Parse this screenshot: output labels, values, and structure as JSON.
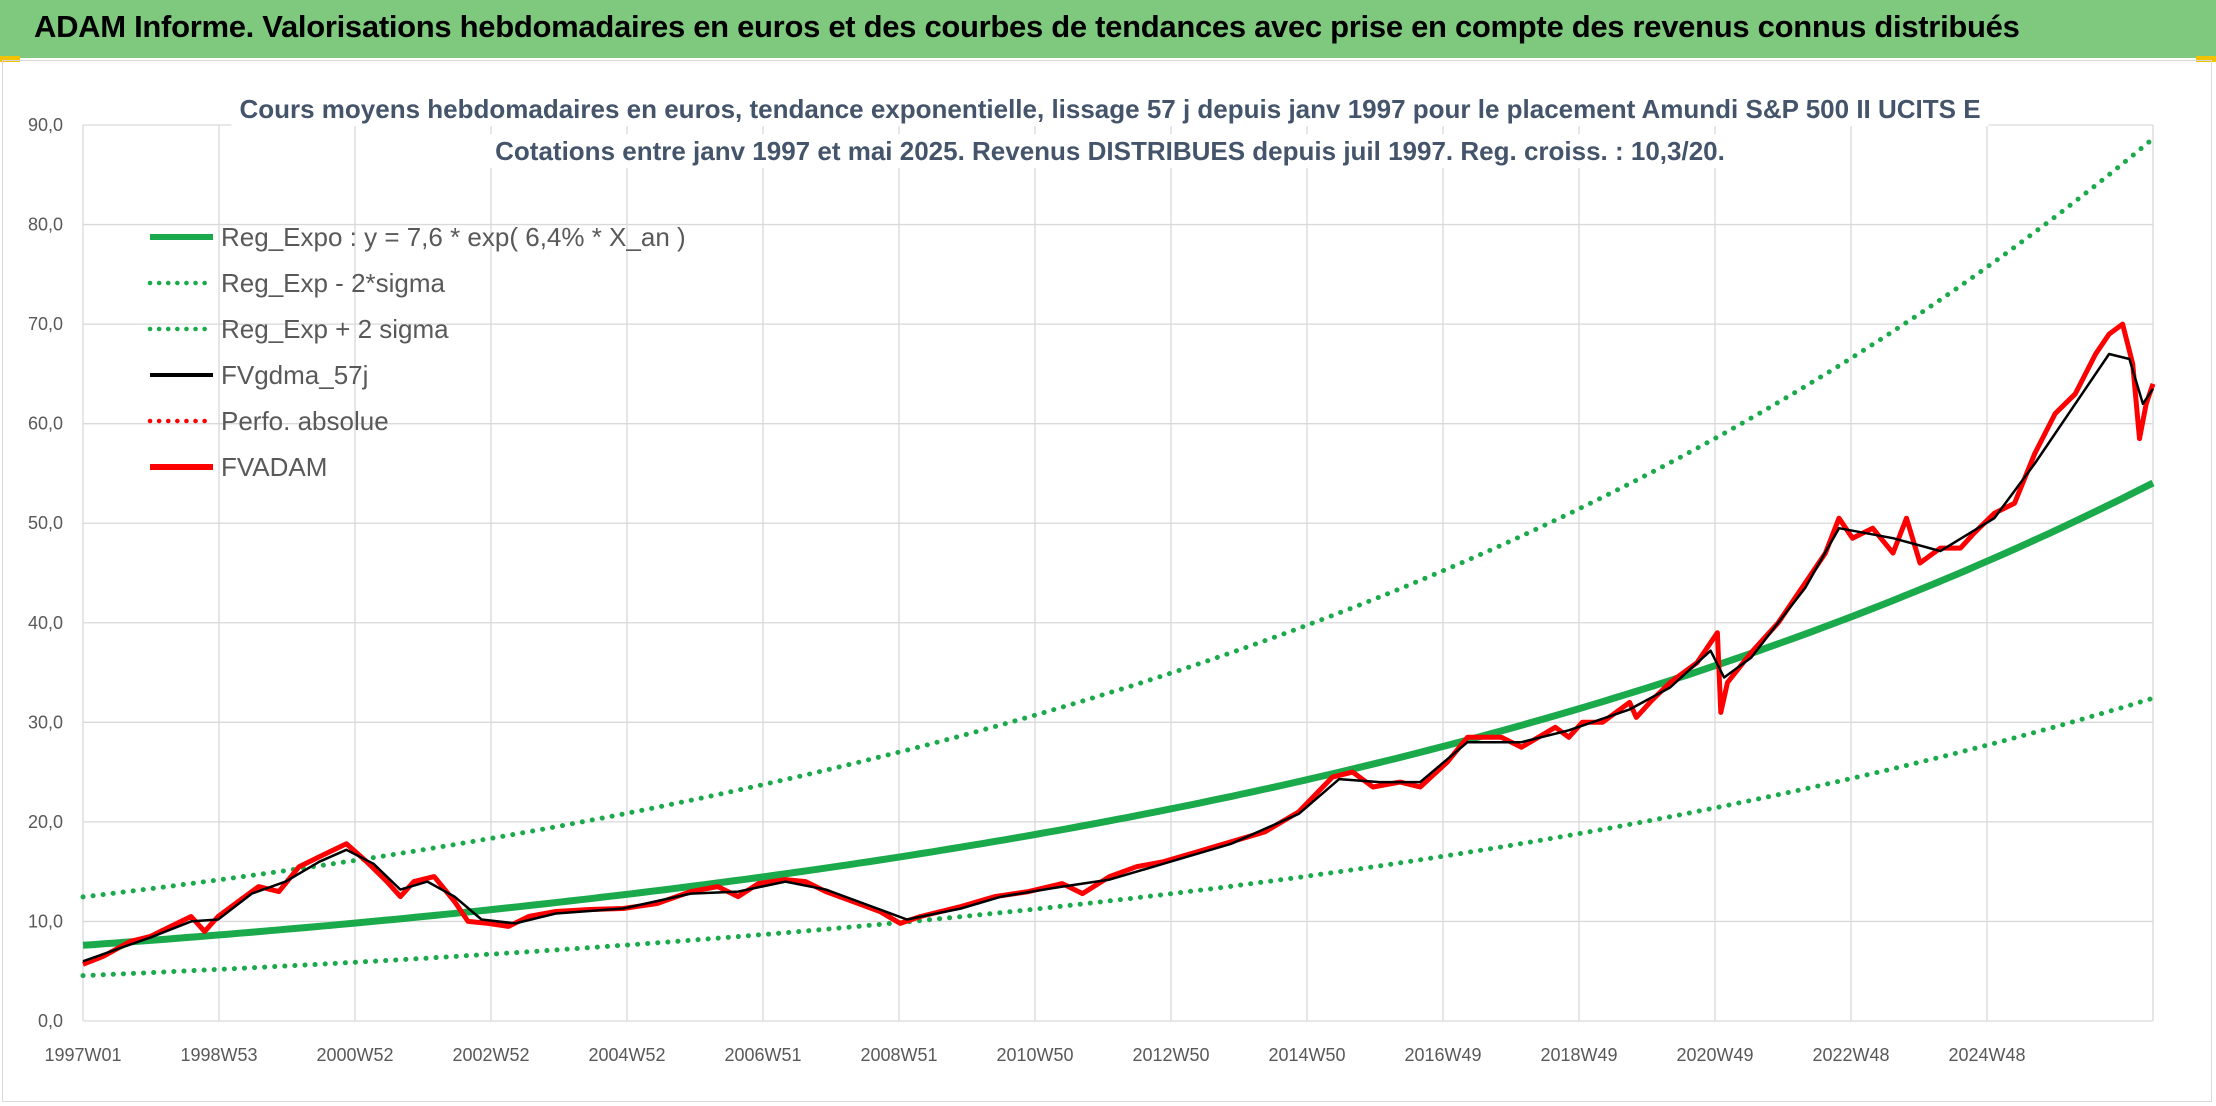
{
  "header": {
    "banner": "ADAM Informe. Valorisations hebdomadaires en euros et des courbes de tendances avec prise en compte des revenus connus distribués"
  },
  "colors": {
    "banner_bg": "#7fc97f",
    "regression": "#1aaa4b",
    "smoothed": "#000000",
    "price": "#ff0000",
    "grid": "#d9d9d9",
    "title": "#44546a"
  },
  "chart_data": {
    "type": "line",
    "title_lines": [
      "Cours moyens hebdomadaires en euros, tendance exponentielle, lissage 57 j depuis janv 1997 pour le placement Amundi S&P 500 II UCITS E",
      "Cotations entre janv 1997 et mai 2025. Revenus DISTRIBUES depuis juil 1997. Reg. croiss. : 10,3/20."
    ],
    "x_range": [
      "1997W01",
      "2025W21"
    ],
    "x_ticks": [
      "1997W01",
      "1998W53",
      "2000W52",
      "2002W52",
      "2004W52",
      "2006W51",
      "2008W51",
      "2010W50",
      "2012W50",
      "2014W50",
      "2016W49",
      "2018W49",
      "2020W49",
      "2022W48",
      "2024W48"
    ],
    "y_ticks": [
      "0,0",
      "10,0",
      "20,0",
      "30,0",
      "40,0",
      "50,0",
      "60,0",
      "70,0",
      "80,0",
      "90,0"
    ],
    "ylim": [
      0,
      90
    ],
    "grid": true,
    "legend_position": "top-left",
    "legend": [
      {
        "label": "Reg_Expo : y = 7,6 * exp( 6,4% *  X_an )",
        "style": "solid-thick",
        "color": "#1aaa4b"
      },
      {
        "label": "Reg_Exp - 2*sigma",
        "style": "dotted",
        "color": "#1aaa4b"
      },
      {
        "label": "Reg_Exp + 2 sigma",
        "style": "dotted",
        "color": "#1aaa4b"
      },
      {
        "label": "FVgdma_57j",
        "style": "solid",
        "color": "#000000"
      },
      {
        "label": "Perfo. absolue",
        "style": "dotted",
        "color": "#ff0000"
      },
      {
        "label": "FVADAM",
        "style": "solid-thick",
        "color": "#ff0000"
      }
    ],
    "regression": {
      "a": 7.6,
      "rate": 0.064,
      "lower_factor": 0.6,
      "upper_factor": 1.64
    },
    "series": [
      {
        "name": "FVADAM",
        "points": [
          [
            1997.0,
            5.7
          ],
          [
            1997.3,
            6.5
          ],
          [
            1997.7,
            8.0
          ],
          [
            1998.0,
            8.5
          ],
          [
            1998.3,
            9.5
          ],
          [
            1998.6,
            10.5
          ],
          [
            1998.8,
            9.0
          ],
          [
            1999.0,
            10.5
          ],
          [
            1999.3,
            12.0
          ],
          [
            1999.6,
            13.5
          ],
          [
            1999.9,
            13.0
          ],
          [
            2000.2,
            15.5
          ],
          [
            2000.5,
            16.5
          ],
          [
            2000.9,
            17.8
          ],
          [
            2001.2,
            16.0
          ],
          [
            2001.5,
            14.0
          ],
          [
            2001.7,
            12.5
          ],
          [
            2001.9,
            14.0
          ],
          [
            2002.2,
            14.5
          ],
          [
            2002.5,
            12.0
          ],
          [
            2002.7,
            10.0
          ],
          [
            2003.0,
            9.8
          ],
          [
            2003.3,
            9.5
          ],
          [
            2003.6,
            10.5
          ],
          [
            2004.0,
            11.0
          ],
          [
            2004.5,
            11.2
          ],
          [
            2005.0,
            11.3
          ],
          [
            2005.5,
            11.8
          ],
          [
            2006.0,
            13.0
          ],
          [
            2006.4,
            13.5
          ],
          [
            2006.7,
            12.5
          ],
          [
            2007.0,
            13.8
          ],
          [
            2007.4,
            14.2
          ],
          [
            2007.7,
            14.0
          ],
          [
            2008.0,
            13.0
          ],
          [
            2008.4,
            12.0
          ],
          [
            2008.8,
            11.0
          ],
          [
            2009.1,
            9.8
          ],
          [
            2009.4,
            10.5
          ],
          [
            2010.0,
            11.5
          ],
          [
            2010.5,
            12.5
          ],
          [
            2011.0,
            13.0
          ],
          [
            2011.5,
            13.8
          ],
          [
            2011.8,
            12.8
          ],
          [
            2012.2,
            14.5
          ],
          [
            2012.6,
            15.5
          ],
          [
            2013.0,
            16.0
          ],
          [
            2013.5,
            17.0
          ],
          [
            2014.0,
            18.0
          ],
          [
            2014.5,
            19.0
          ],
          [
            2015.0,
            21.0
          ],
          [
            2015.5,
            24.5
          ],
          [
            2015.8,
            25.0
          ],
          [
            2016.1,
            23.5
          ],
          [
            2016.5,
            24.0
          ],
          [
            2016.8,
            23.5
          ],
          [
            2017.2,
            26.0
          ],
          [
            2017.5,
            28.5
          ],
          [
            2018.0,
            28.5
          ],
          [
            2018.3,
            27.5
          ],
          [
            2018.8,
            29.5
          ],
          [
            2019.0,
            28.5
          ],
          [
            2019.2,
            30.0
          ],
          [
            2019.5,
            30.0
          ],
          [
            2019.9,
            32.0
          ],
          [
            2020.0,
            30.5
          ],
          [
            2020.2,
            32.0
          ],
          [
            2020.5,
            34.0
          ],
          [
            2020.9,
            36.0
          ],
          [
            2021.1,
            38.0
          ],
          [
            2021.2,
            39.0
          ],
          [
            2021.25,
            31.0
          ],
          [
            2021.35,
            34.0
          ],
          [
            2021.7,
            37.0
          ],
          [
            2022.1,
            40.0
          ],
          [
            2022.5,
            44.0
          ],
          [
            2022.8,
            47.0
          ],
          [
            2023.0,
            50.5
          ],
          [
            2023.2,
            48.5
          ],
          [
            2023.5,
            49.5
          ],
          [
            2023.8,
            47.0
          ],
          [
            2024.0,
            50.5
          ],
          [
            2024.2,
            46.0
          ],
          [
            2024.5,
            47.5
          ],
          [
            2024.8,
            47.5
          ],
          [
            2025.0,
            49.0
          ],
          [
            2025.3,
            51.0
          ],
          [
            2025.6,
            52.0
          ],
          [
            2025.9,
            57.0
          ],
          [
            2026.2,
            61.0
          ],
          [
            2026.5,
            63.0
          ],
          [
            2026.8,
            67.0
          ],
          [
            2027.0,
            69.0
          ],
          [
            2027.2,
            70.0
          ],
          [
            2027.35,
            66.0
          ],
          [
            2027.45,
            58.5
          ],
          [
            2027.55,
            62.0
          ],
          [
            2027.65,
            64.0
          ]
        ]
      },
      {
        "name": "FVgdma_57j",
        "points": [
          [
            1997.0,
            6.0
          ],
          [
            1997.5,
            7.2
          ],
          [
            1998.0,
            8.4
          ],
          [
            1998.6,
            10.0
          ],
          [
            1999.0,
            10.2
          ],
          [
            1999.5,
            12.8
          ],
          [
            2000.0,
            14.0
          ],
          [
            2000.5,
            16.0
          ],
          [
            2000.9,
            17.2
          ],
          [
            2001.3,
            15.8
          ],
          [
            2001.7,
            13.2
          ],
          [
            2002.1,
            14.0
          ],
          [
            2002.5,
            12.5
          ],
          [
            2002.9,
            10.2
          ],
          [
            2003.4,
            9.8
          ],
          [
            2004.0,
            10.8
          ],
          [
            2005.0,
            11.3
          ],
          [
            2006.0,
            12.8
          ],
          [
            2006.7,
            13.0
          ],
          [
            2007.4,
            14.0
          ],
          [
            2008.0,
            13.2
          ],
          [
            2008.8,
            11.2
          ],
          [
            2009.2,
            10.2
          ],
          [
            2010.0,
            11.3
          ],
          [
            2010.6,
            12.5
          ],
          [
            2011.5,
            13.5
          ],
          [
            2012.2,
            14.2
          ],
          [
            2013.0,
            15.8
          ],
          [
            2014.0,
            17.8
          ],
          [
            2015.0,
            20.8
          ],
          [
            2015.6,
            24.3
          ],
          [
            2016.2,
            24.0
          ],
          [
            2016.8,
            24.0
          ],
          [
            2017.5,
            28.0
          ],
          [
            2018.3,
            28.0
          ],
          [
            2019.0,
            29.2
          ],
          [
            2019.9,
            31.3
          ],
          [
            2020.5,
            33.5
          ],
          [
            2021.1,
            37.2
          ],
          [
            2021.3,
            34.5
          ],
          [
            2021.7,
            36.5
          ],
          [
            2022.5,
            43.5
          ],
          [
            2023.0,
            49.5
          ],
          [
            2023.8,
            48.5
          ],
          [
            2024.5,
            47.2
          ],
          [
            2025.3,
            50.5
          ],
          [
            2025.9,
            56.0
          ],
          [
            2026.5,
            62.0
          ],
          [
            2027.0,
            67.0
          ],
          [
            2027.3,
            66.5
          ],
          [
            2027.5,
            62.0
          ],
          [
            2027.65,
            63.5
          ]
        ]
      }
    ]
  }
}
